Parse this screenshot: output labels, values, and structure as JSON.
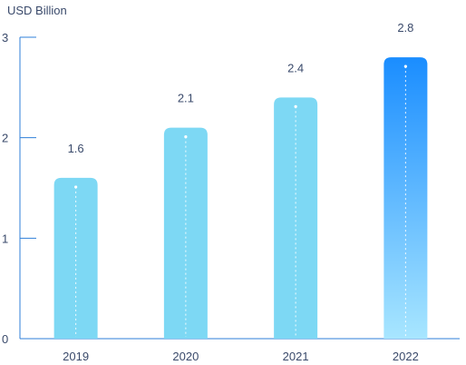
{
  "chart_data": {
    "type": "bar",
    "ylabel": "USD Billion",
    "categories": [
      "2019",
      "2020",
      "2021",
      "2022"
    ],
    "values": [
      1.6,
      2.1,
      2.4,
      2.8
    ],
    "data_labels": [
      "1.6",
      "2.1",
      "2.4",
      "2.8"
    ],
    "ylim": [
      0,
      3
    ],
    "yticks": [
      0,
      1,
      2,
      3
    ],
    "ytick_labels": [
      "0",
      "1",
      "2",
      "3"
    ],
    "grid": false,
    "colors": {
      "bar_light": "#7dd8f4",
      "highlight_top": "#1a8dff",
      "highlight_bottom": "#a8e6ff",
      "axis": "#2f7fd8",
      "text": "#3a4a6b"
    }
  }
}
